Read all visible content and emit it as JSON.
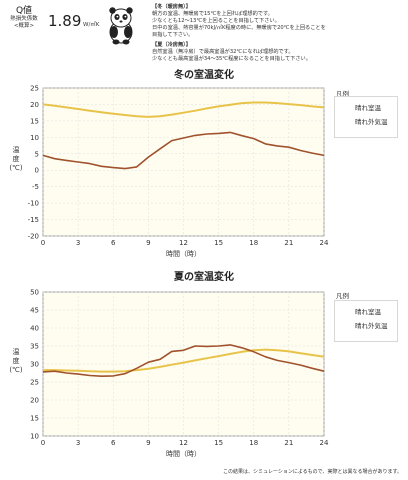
{
  "header": {
    "q_label": "Q値",
    "q_sub1": "熱損失係数",
    "q_sub2": "<概算>",
    "q_value": "1.89",
    "q_unit": "W/㎡K",
    "notes_winter_head": "【冬（暖房無）】",
    "notes_winter_1": "朝方の室温、無暖房で15℃を上回れば理想的です。",
    "notes_winter_2": "少なくとも12～13℃を上回ることを目指して下さい。",
    "notes_winter_3": "日中の室温、熱容量が70kJ/㎡K程度の時に、無暖房で20℃を上回ることを",
    "notes_winter_4": "目指して下さい。",
    "notes_summer_head": "【夏（冷房無）】",
    "notes_summer_1": "自然室温（無冷房）で最高室温が32℃になれば理想的です。",
    "notes_summer_2": "少なくとも最高室温が34～35℃程度になることを目指して下さい。"
  },
  "legend_title": "凡例",
  "footer": "この結果は、シミュレーションによるもので、実際とは異なる場合があります。",
  "colors": {
    "indoor": "#a0522d",
    "outdoor": "#e8c34a",
    "plot_bg": "#fffdf0"
  },
  "chart_data": [
    {
      "type": "line",
      "title": "冬の室温変化",
      "xlabel": "時間（時）",
      "ylabel_chars": [
        "温",
        "度",
        "(℃)"
      ],
      "xlim": [
        0,
        24
      ],
      "ylim": [
        -20,
        25
      ],
      "xticks": [
        0,
        3,
        6,
        9,
        12,
        15,
        18,
        21,
        24
      ],
      "yticks": [
        -20,
        -15,
        -10,
        -5,
        0,
        5,
        10,
        15,
        20,
        25
      ],
      "series": [
        {
          "name": "晴れ室温",
          "color": "#a0522d",
          "x": [
            0,
            1,
            2,
            3,
            4,
            5,
            6,
            7,
            8,
            9,
            10,
            11,
            12,
            13,
            14,
            15,
            16,
            17,
            18,
            19,
            20,
            21,
            22,
            23,
            24
          ],
          "y": [
            4.5,
            3.5,
            3,
            2.5,
            2,
            1.2,
            0.8,
            0.5,
            1,
            4,
            6.5,
            9,
            9.8,
            10.6,
            11,
            11.2,
            11.5,
            10.5,
            9.6,
            8,
            7.4,
            7,
            6,
            5.2,
            4.5
          ]
        },
        {
          "name": "晴れ外気温",
          "color": "#e8c34a",
          "x": [
            0,
            1,
            2,
            3,
            4,
            5,
            6,
            7,
            8,
            9,
            10,
            11,
            12,
            13,
            14,
            15,
            16,
            17,
            18,
            19,
            20,
            21,
            22,
            23,
            24
          ],
          "y": [
            20,
            19.6,
            19.1,
            18.6,
            18.1,
            17.6,
            17.2,
            16.8,
            16.4,
            16.2,
            16.4,
            16.9,
            17.5,
            18.1,
            18.8,
            19.4,
            19.9,
            20.4,
            20.6,
            20.6,
            20.4,
            20.1,
            19.8,
            19.4,
            19.1
          ]
        }
      ]
    },
    {
      "type": "line",
      "title": "夏の室温変化",
      "xlabel": "時間（時）",
      "ylabel_chars": [
        "温",
        "度",
        "(℃)"
      ],
      "xlim": [
        0,
        24
      ],
      "ylim": [
        10,
        50
      ],
      "xticks": [
        0,
        3,
        6,
        9,
        12,
        15,
        18,
        21,
        24
      ],
      "yticks": [
        10,
        15,
        20,
        25,
        30,
        35,
        40,
        45,
        50
      ],
      "series": [
        {
          "name": "晴れ室温",
          "color": "#a0522d",
          "x": [
            0,
            1,
            2,
            3,
            4,
            5,
            6,
            7,
            8,
            9,
            10,
            11,
            12,
            13,
            14,
            15,
            16,
            17,
            18,
            19,
            20,
            21,
            22,
            23,
            24
          ],
          "y": [
            27.8,
            28,
            27.5,
            27.2,
            26.8,
            26.6,
            26.7,
            27.3,
            28.8,
            30.5,
            31.3,
            33.5,
            33.8,
            35,
            34.9,
            35,
            35.3,
            34.5,
            33.4,
            32,
            31,
            30.4,
            29.7,
            28.8,
            28
          ]
        },
        {
          "name": "晴れ外気温",
          "color": "#e8c34a",
          "x": [
            0,
            1,
            2,
            3,
            4,
            5,
            6,
            7,
            8,
            9,
            10,
            11,
            12,
            13,
            14,
            15,
            16,
            17,
            18,
            19,
            20,
            21,
            22,
            23,
            24
          ],
          "y": [
            28.3,
            28.3,
            28.2,
            28.1,
            28.0,
            27.9,
            27.9,
            28.0,
            28.3,
            28.7,
            29.2,
            29.8,
            30.4,
            31.0,
            31.6,
            32.2,
            32.8,
            33.4,
            33.8,
            34.0,
            33.8,
            33.5,
            33.0,
            32.5,
            32.0
          ]
        }
      ]
    }
  ]
}
